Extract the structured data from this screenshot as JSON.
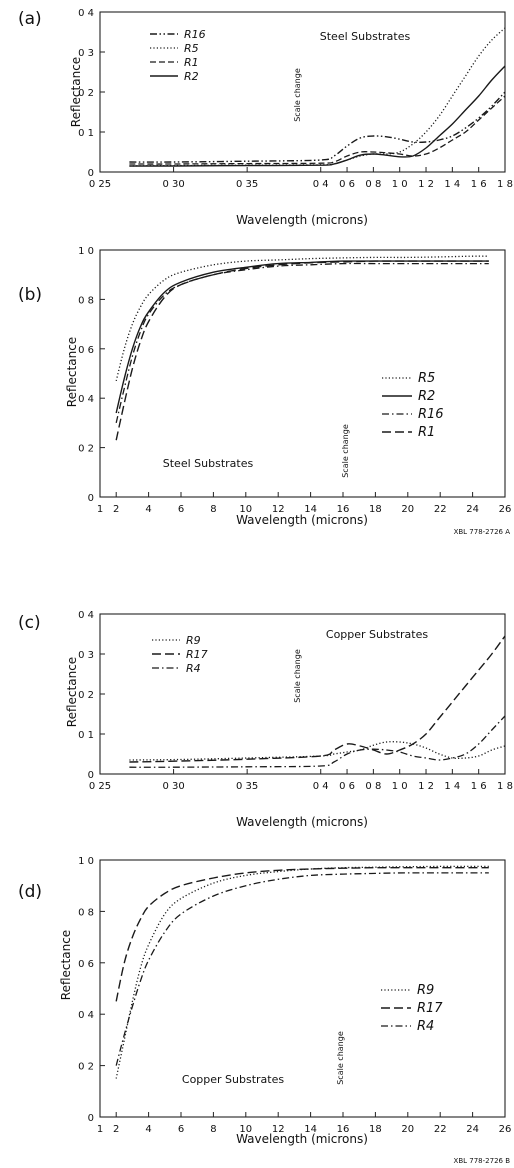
{
  "panels": [
    {
      "tag": "(a)",
      "title": "Steel Substrates",
      "scale_note": "Scale change",
      "xlabel": "Wavelength (microns)",
      "ylabel": "Reflectance",
      "yticks": [
        "0",
        "0 1",
        "0 2",
        "0 3",
        "0 4"
      ],
      "xticks": [
        "0 25",
        "0 30",
        "0 35",
        "0 4",
        "0 6",
        "0 8",
        "1 0",
        "1 2",
        "1 4",
        "1 6",
        "1 8"
      ],
      "legend": [
        "R16",
        "R5",
        "R1",
        "R2"
      ]
    },
    {
      "tag": "(b)",
      "title": "Steel Substrates",
      "scale_note": "Scale change",
      "xlabel": "Wavelength (microns)",
      "ylabel": "Reflectance",
      "yticks": [
        "0",
        "0 2",
        "0 4",
        "0 6",
        "0 8",
        "1 0"
      ],
      "xticks": [
        "1",
        "2",
        "4",
        "6",
        "8",
        "10",
        "12",
        "14",
        "16",
        "18",
        "20",
        "22",
        "24",
        "26"
      ],
      "legend": [
        "R5",
        "R2",
        "R16",
        "R1"
      ],
      "figure_id": "XBL 778-2726 A"
    },
    {
      "tag": "(c)",
      "title": "Copper Substrates",
      "scale_note": "Scale change",
      "xlabel": "Wavelength (microns)",
      "ylabel": "Reflectance",
      "yticks": [
        "0",
        "0 1",
        "0 2",
        "0 3",
        "0 4"
      ],
      "xticks": [
        "0 25",
        "0 30",
        "0 35",
        "0 4",
        "0 6",
        "0 8",
        "1 0",
        "1 2",
        "1 4",
        "1 6",
        "1 8"
      ],
      "legend": [
        "R9",
        "R17",
        "R4"
      ]
    },
    {
      "tag": "(d)",
      "title": "Copper Substrates",
      "scale_note": "Scale change",
      "xlabel": "Wavelength (microns)",
      "ylabel": "Reflectance",
      "yticks": [
        "0",
        "0 2",
        "0 4",
        "0 6",
        "0 8",
        "1 0"
      ],
      "xticks": [
        "1",
        "2",
        "4",
        "6",
        "8",
        "10",
        "12",
        "14",
        "16",
        "18",
        "20",
        "22",
        "24",
        "26"
      ],
      "legend": [
        "R9",
        "R17",
        "R4"
      ],
      "figure_id": "XBL 778-2726 B"
    }
  ],
  "chart_data": [
    {
      "type": "line",
      "title": "Steel Substrates",
      "xlabel": "Wavelength (microns)",
      "ylabel": "Reflectance",
      "xscale": "broken: 0.25-0.40 then 0.40-1.8 (scale change)",
      "xlim": [
        0.25,
        1.8
      ],
      "ylim": [
        0,
        0.4
      ],
      "grid": false,
      "legend_position": "top-left",
      "series": [
        {
          "name": "R16",
          "style": "dash-dot-dot",
          "x": [
            0.27,
            0.3,
            0.35,
            0.4,
            0.5,
            0.6,
            0.7,
            0.8,
            0.9,
            1.0,
            1.1,
            1.2,
            1.3,
            1.4,
            1.5,
            1.6,
            1.7,
            1.8
          ],
          "y": [
            0.025,
            0.025,
            0.027,
            0.03,
            0.04,
            0.065,
            0.085,
            0.09,
            0.088,
            0.082,
            0.075,
            0.075,
            0.08,
            0.09,
            0.11,
            0.135,
            0.165,
            0.2
          ]
        },
        {
          "name": "R5",
          "style": "dotted",
          "x": [
            0.27,
            0.3,
            0.35,
            0.4,
            0.5,
            0.6,
            0.7,
            0.8,
            0.9,
            1.0,
            1.1,
            1.2,
            1.3,
            1.4,
            1.5,
            1.6,
            1.7,
            1.8
          ],
          "y": [
            0.015,
            0.016,
            0.017,
            0.018,
            0.02,
            0.03,
            0.04,
            0.045,
            0.045,
            0.05,
            0.07,
            0.1,
            0.14,
            0.19,
            0.24,
            0.29,
            0.33,
            0.36
          ]
        },
        {
          "name": "R1",
          "style": "dashed",
          "x": [
            0.27,
            0.3,
            0.35,
            0.4,
            0.5,
            0.6,
            0.7,
            0.8,
            0.9,
            1.0,
            1.1,
            1.2,
            1.3,
            1.4,
            1.5,
            1.6,
            1.7,
            1.8
          ],
          "y": [
            0.02,
            0.02,
            0.021,
            0.022,
            0.025,
            0.04,
            0.05,
            0.05,
            0.048,
            0.045,
            0.04,
            0.045,
            0.06,
            0.08,
            0.1,
            0.13,
            0.16,
            0.19
          ]
        },
        {
          "name": "R2",
          "style": "solid",
          "x": [
            0.27,
            0.3,
            0.35,
            0.4,
            0.5,
            0.6,
            0.7,
            0.8,
            0.9,
            1.0,
            1.1,
            1.2,
            1.3,
            1.4,
            1.5,
            1.6,
            1.7,
            1.8
          ],
          "y": [
            0.015,
            0.015,
            0.016,
            0.017,
            0.02,
            0.03,
            0.042,
            0.045,
            0.042,
            0.038,
            0.04,
            0.06,
            0.09,
            0.12,
            0.155,
            0.19,
            0.23,
            0.265
          ]
        }
      ]
    },
    {
      "type": "line",
      "title": "Steel Substrates",
      "xlabel": "Wavelength (microns)",
      "ylabel": "Reflectance",
      "xlim": [
        1,
        26
      ],
      "ylim": [
        0,
        1.0
      ],
      "grid": false,
      "legend_position": "right",
      "series": [
        {
          "name": "R5",
          "style": "dotted",
          "x": [
            2,
            2.5,
            3,
            3.5,
            4,
            5,
            6,
            8,
            10,
            12,
            14,
            16,
            18,
            20,
            22,
            24,
            25
          ],
          "y": [
            0.47,
            0.6,
            0.7,
            0.77,
            0.82,
            0.88,
            0.91,
            0.94,
            0.955,
            0.96,
            0.965,
            0.968,
            0.97,
            0.97,
            0.972,
            0.975,
            0.975
          ]
        },
        {
          "name": "R2",
          "style": "solid",
          "x": [
            2,
            2.5,
            3,
            3.5,
            4,
            5,
            6,
            8,
            10,
            12,
            14,
            16,
            18,
            20,
            22,
            24,
            25
          ],
          "y": [
            0.34,
            0.48,
            0.6,
            0.69,
            0.75,
            0.83,
            0.87,
            0.91,
            0.93,
            0.945,
            0.95,
            0.955,
            0.955,
            0.955,
            0.955,
            0.955,
            0.955
          ]
        },
        {
          "name": "R16",
          "style": "dash-dot",
          "x": [
            2,
            2.5,
            3,
            3.5,
            4,
            5,
            6,
            8,
            10,
            12,
            14,
            16,
            18,
            20,
            22,
            24,
            25
          ],
          "y": [
            0.3,
            0.44,
            0.57,
            0.67,
            0.74,
            0.82,
            0.86,
            0.9,
            0.92,
            0.935,
            0.94,
            0.945,
            0.945,
            0.945,
            0.945,
            0.945,
            0.945
          ]
        },
        {
          "name": "R1",
          "style": "long-dash",
          "x": [
            2,
            2.5,
            3,
            3.5,
            4,
            5,
            6,
            8,
            10,
            12,
            14,
            16,
            18,
            20,
            22,
            24,
            25
          ],
          "y": [
            0.23,
            0.38,
            0.52,
            0.63,
            0.71,
            0.81,
            0.86,
            0.9,
            0.925,
            0.94,
            0.948,
            0.952,
            0.955,
            0.955,
            0.955,
            0.955,
            0.955
          ]
        }
      ]
    },
    {
      "type": "line",
      "title": "Copper Substrates",
      "xlabel": "Wavelength (microns)",
      "ylabel": "Reflectance",
      "xscale": "broken: 0.25-0.40 then 0.40-1.8 (scale change)",
      "xlim": [
        0.25,
        1.8
      ],
      "ylim": [
        0,
        0.4
      ],
      "grid": false,
      "legend_position": "top-left",
      "series": [
        {
          "name": "R9",
          "style": "dotted",
          "x": [
            0.27,
            0.3,
            0.35,
            0.4,
            0.5,
            0.6,
            0.7,
            0.8,
            0.9,
            1.0,
            1.1,
            1.2,
            1.3,
            1.4,
            1.5,
            1.6,
            1.7,
            1.8
          ],
          "y": [
            0.035,
            0.036,
            0.04,
            0.045,
            0.05,
            0.055,
            0.06,
            0.072,
            0.08,
            0.08,
            0.075,
            0.065,
            0.05,
            0.04,
            0.04,
            0.045,
            0.06,
            0.07
          ]
        },
        {
          "name": "R17",
          "style": "long-dash",
          "x": [
            0.27,
            0.3,
            0.35,
            0.4,
            0.5,
            0.6,
            0.7,
            0.8,
            0.9,
            1.0,
            1.1,
            1.2,
            1.3,
            1.4,
            1.5,
            1.6,
            1.7,
            1.8
          ],
          "y": [
            0.03,
            0.032,
            0.037,
            0.045,
            0.06,
            0.075,
            0.07,
            0.06,
            0.05,
            0.06,
            0.075,
            0.1,
            0.14,
            0.18,
            0.22,
            0.26,
            0.3,
            0.345
          ]
        },
        {
          "name": "R4",
          "style": "dash-dot",
          "x": [
            0.27,
            0.3,
            0.35,
            0.4,
            0.5,
            0.6,
            0.7,
            0.8,
            0.9,
            1.0,
            1.1,
            1.2,
            1.3,
            1.4,
            1.5,
            1.6,
            1.7,
            1.8
          ],
          "y": [
            0.017,
            0.017,
            0.018,
            0.02,
            0.03,
            0.05,
            0.06,
            0.062,
            0.06,
            0.055,
            0.045,
            0.04,
            0.035,
            0.04,
            0.05,
            0.075,
            0.11,
            0.145
          ]
        }
      ]
    },
    {
      "type": "line",
      "title": "Copper Substrates",
      "xlabel": "Wavelength (microns)",
      "ylabel": "Reflectance",
      "xlim": [
        1,
        26
      ],
      "ylim": [
        0,
        1.0
      ],
      "grid": false,
      "legend_position": "right",
      "series": [
        {
          "name": "R9",
          "style": "dotted",
          "x": [
            2,
            2.5,
            3,
            3.5,
            4,
            5,
            6,
            8,
            10,
            12,
            14,
            16,
            18,
            20,
            22,
            24,
            25
          ],
          "y": [
            0.15,
            0.3,
            0.45,
            0.58,
            0.67,
            0.79,
            0.85,
            0.91,
            0.94,
            0.955,
            0.965,
            0.97,
            0.972,
            0.974,
            0.975,
            0.975,
            0.975
          ]
        },
        {
          "name": "R17",
          "style": "long-dash",
          "x": [
            2,
            2.5,
            3,
            3.5,
            4,
            5,
            6,
            8,
            10,
            12,
            14,
            16,
            18,
            20,
            22,
            24,
            25
          ],
          "y": [
            0.45,
            0.6,
            0.7,
            0.77,
            0.82,
            0.87,
            0.9,
            0.93,
            0.95,
            0.96,
            0.965,
            0.968,
            0.97,
            0.97,
            0.97,
            0.97,
            0.97
          ]
        },
        {
          "name": "R4",
          "style": "dash-dot",
          "x": [
            2,
            2.5,
            3,
            3.5,
            4,
            5,
            6,
            8,
            10,
            12,
            14,
            16,
            18,
            20,
            22,
            24,
            25
          ],
          "y": [
            0.2,
            0.32,
            0.43,
            0.53,
            0.61,
            0.72,
            0.79,
            0.86,
            0.9,
            0.925,
            0.94,
            0.945,
            0.948,
            0.95,
            0.95,
            0.95,
            0.95
          ]
        }
      ]
    }
  ]
}
